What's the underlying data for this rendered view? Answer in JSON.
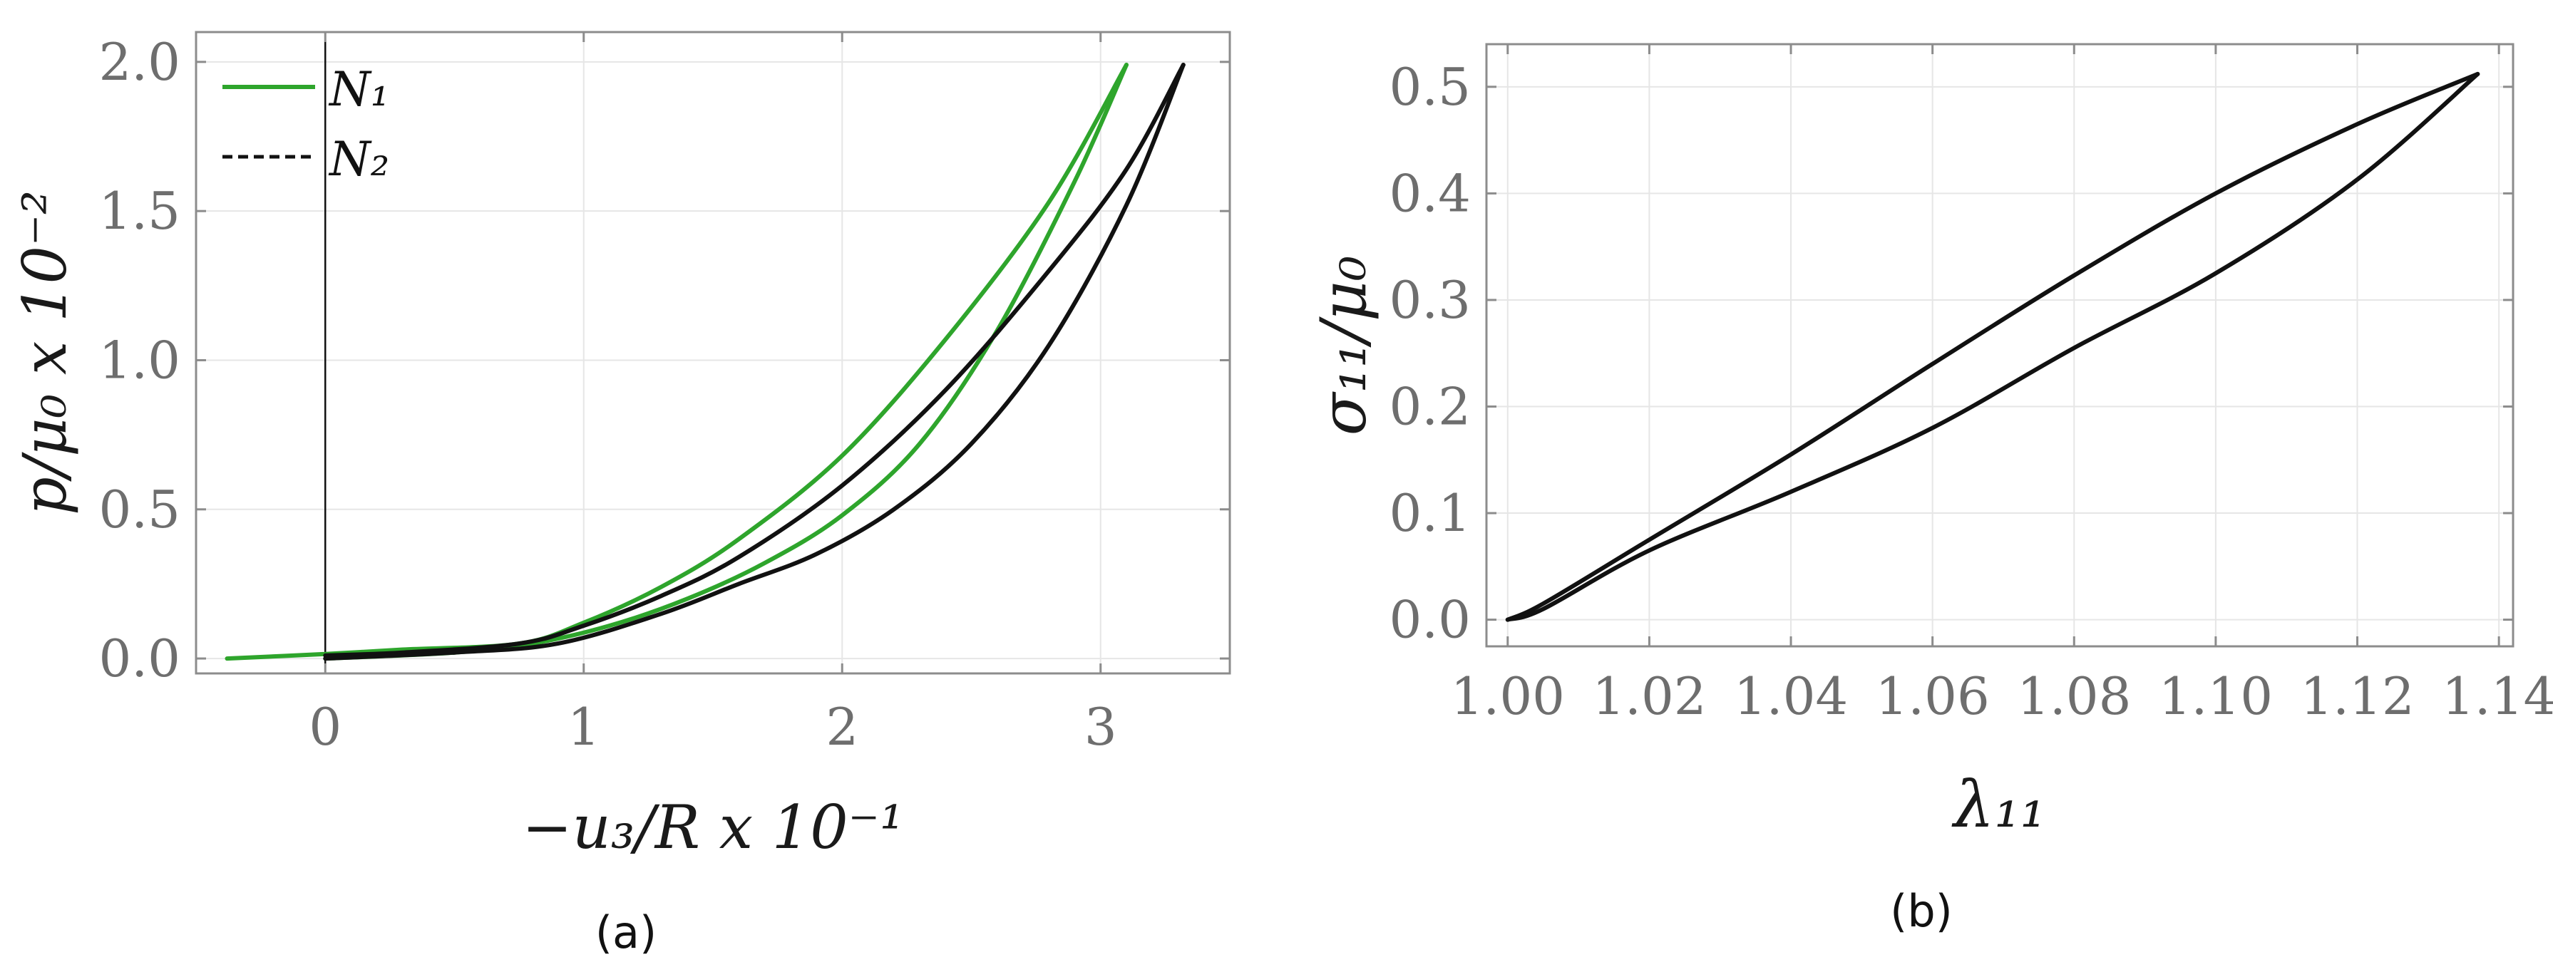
{
  "colors": {
    "n1": "#2ea52c",
    "n2": "#111111",
    "grid": "#e6e6e6",
    "frame": "#8c8c8c",
    "tick": "#6e6e6e"
  },
  "chart_data": [
    {
      "panel": "(a)",
      "type": "line",
      "caption": "(a)",
      "xlabel": "−u₃/R x 10⁻¹",
      "ylabel": "p/μ₀ x 10⁻²",
      "xlim": [
        -0.5,
        3.5
      ],
      "ylim": [
        -0.05,
        2.1
      ],
      "xticks": [
        0,
        1,
        2,
        3
      ],
      "xtick_labels": [
        "0",
        "1",
        "2",
        "3"
      ],
      "yticks": [
        0.0,
        0.5,
        1.0,
        1.5,
        2.0
      ],
      "ytick_labels": [
        "0.0",
        "0.5",
        "1.0",
        "1.5",
        "2.0"
      ],
      "grid": true,
      "zero_line": true,
      "legend": "top-left",
      "series": [
        {
          "name": "N₁",
          "color": "#2ea52c",
          "loading": {
            "x": [
              -0.38,
              0.0,
              0.3,
              0.75,
              1.0,
              1.3,
              1.6,
              2.0,
              2.4,
              2.8,
              3.1
            ],
            "y": [
              0.0,
              0.015,
              0.03,
              0.05,
              0.12,
              0.24,
              0.4,
              0.68,
              1.07,
              1.53,
              1.99
            ]
          },
          "unloading": {
            "x": [
              3.1,
              2.9,
              2.6,
              2.3,
              2.0,
              1.7,
              1.4,
              1.1,
              0.8,
              0.5,
              0.0
            ],
            "y": [
              1.99,
              1.6,
              1.1,
              0.72,
              0.48,
              0.32,
              0.2,
              0.11,
              0.05,
              0.02,
              0.0
            ]
          }
        },
        {
          "name": "N₂",
          "color": "#111111",
          "loading": {
            "x": [
              0.0,
              0.3,
              0.75,
              1.0,
              1.3,
              1.6,
              2.0,
              2.4,
              2.8,
              3.1,
              3.32
            ],
            "y": [
              0.01,
              0.02,
              0.05,
              0.11,
              0.21,
              0.34,
              0.58,
              0.9,
              1.3,
              1.64,
              1.99
            ]
          },
          "unloading": {
            "x": [
              3.32,
              3.1,
              2.8,
              2.5,
              2.2,
              1.9,
              1.6,
              1.3,
              0.9,
              0.5,
              0.0
            ],
            "y": [
              1.99,
              1.52,
              1.05,
              0.72,
              0.5,
              0.35,
              0.25,
              0.15,
              0.05,
              0.02,
              0.0
            ]
          }
        }
      ]
    },
    {
      "panel": "(b)",
      "type": "line",
      "caption": "(b)",
      "xlabel": "λ₁₁",
      "ylabel": "σ₁₁/μ₀",
      "xlim": [
        0.997,
        1.142
      ],
      "ylim": [
        -0.025,
        0.54
      ],
      "xticks": [
        1.0,
        1.02,
        1.04,
        1.06,
        1.08,
        1.1,
        1.12,
        1.14
      ],
      "xtick_labels": [
        "1.00",
        "1.02",
        "1.04",
        "1.06",
        "1.08",
        "1.10",
        "1.12",
        "1.14"
      ],
      "yticks": [
        0.0,
        0.1,
        0.2,
        0.3,
        0.4,
        0.5
      ],
      "ytick_labels": [
        "0.0",
        "0.1",
        "0.2",
        "0.3",
        "0.4",
        "0.5"
      ],
      "grid": true,
      "series": [
        {
          "color": "#111111",
          "loading": {
            "x": [
              1.0,
              1.005,
              1.02,
              1.04,
              1.06,
              1.08,
              1.1,
              1.12,
              1.137
            ],
            "y": [
              0.0,
              0.015,
              0.075,
              0.155,
              0.24,
              0.323,
              0.4,
              0.465,
              0.512
            ]
          },
          "unloading": {
            "x": [
              1.137,
              1.12,
              1.1,
              1.08,
              1.06,
              1.04,
              1.02,
              1.005,
              1.0
            ],
            "y": [
              0.512,
              0.413,
              0.325,
              0.255,
              0.18,
              0.12,
              0.065,
              0.01,
              0.0
            ]
          }
        }
      ]
    }
  ]
}
